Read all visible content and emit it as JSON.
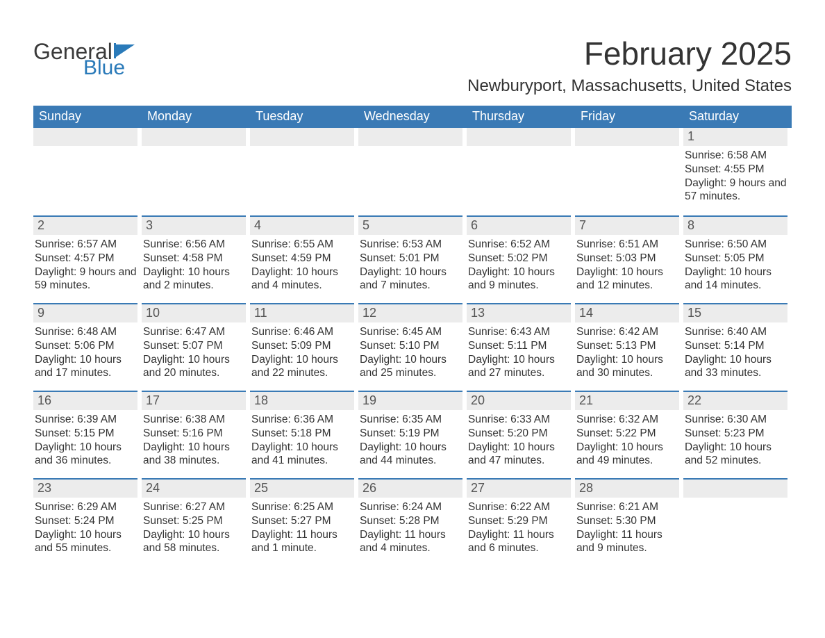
{
  "logo": {
    "text1": "General",
    "text2": "Blue",
    "flag_color": "#2a7ab9"
  },
  "title": {
    "month": "February 2025",
    "location": "Newburyport, Massachusetts, United States"
  },
  "colors": {
    "header_bg": "#3a7ab5",
    "header_text": "#ffffff",
    "daynum_bg": "#ececec",
    "border_accent": "#3a7ab5",
    "body_text": "#333333"
  },
  "labels": {
    "sunrise": "Sunrise:",
    "sunset": "Sunset:",
    "daylight": "Daylight:"
  },
  "day_headers": [
    "Sunday",
    "Monday",
    "Tuesday",
    "Wednesday",
    "Thursday",
    "Friday",
    "Saturday"
  ],
  "weeks": [
    [
      null,
      null,
      null,
      null,
      null,
      null,
      {
        "n": "1",
        "sunrise": "6:58 AM",
        "sunset": "4:55 PM",
        "daylight": "9 hours and 57 minutes."
      }
    ],
    [
      {
        "n": "2",
        "sunrise": "6:57 AM",
        "sunset": "4:57 PM",
        "daylight": "9 hours and 59 minutes."
      },
      {
        "n": "3",
        "sunrise": "6:56 AM",
        "sunset": "4:58 PM",
        "daylight": "10 hours and 2 minutes."
      },
      {
        "n": "4",
        "sunrise": "6:55 AM",
        "sunset": "4:59 PM",
        "daylight": "10 hours and 4 minutes."
      },
      {
        "n": "5",
        "sunrise": "6:53 AM",
        "sunset": "5:01 PM",
        "daylight": "10 hours and 7 minutes."
      },
      {
        "n": "6",
        "sunrise": "6:52 AM",
        "sunset": "5:02 PM",
        "daylight": "10 hours and 9 minutes."
      },
      {
        "n": "7",
        "sunrise": "6:51 AM",
        "sunset": "5:03 PM",
        "daylight": "10 hours and 12 minutes."
      },
      {
        "n": "8",
        "sunrise": "6:50 AM",
        "sunset": "5:05 PM",
        "daylight": "10 hours and 14 minutes."
      }
    ],
    [
      {
        "n": "9",
        "sunrise": "6:48 AM",
        "sunset": "5:06 PM",
        "daylight": "10 hours and 17 minutes."
      },
      {
        "n": "10",
        "sunrise": "6:47 AM",
        "sunset": "5:07 PM",
        "daylight": "10 hours and 20 minutes."
      },
      {
        "n": "11",
        "sunrise": "6:46 AM",
        "sunset": "5:09 PM",
        "daylight": "10 hours and 22 minutes."
      },
      {
        "n": "12",
        "sunrise": "6:45 AM",
        "sunset": "5:10 PM",
        "daylight": "10 hours and 25 minutes."
      },
      {
        "n": "13",
        "sunrise": "6:43 AM",
        "sunset": "5:11 PM",
        "daylight": "10 hours and 27 minutes."
      },
      {
        "n": "14",
        "sunrise": "6:42 AM",
        "sunset": "5:13 PM",
        "daylight": "10 hours and 30 minutes."
      },
      {
        "n": "15",
        "sunrise": "6:40 AM",
        "sunset": "5:14 PM",
        "daylight": "10 hours and 33 minutes."
      }
    ],
    [
      {
        "n": "16",
        "sunrise": "6:39 AM",
        "sunset": "5:15 PM",
        "daylight": "10 hours and 36 minutes."
      },
      {
        "n": "17",
        "sunrise": "6:38 AM",
        "sunset": "5:16 PM",
        "daylight": "10 hours and 38 minutes."
      },
      {
        "n": "18",
        "sunrise": "6:36 AM",
        "sunset": "5:18 PM",
        "daylight": "10 hours and 41 minutes."
      },
      {
        "n": "19",
        "sunrise": "6:35 AM",
        "sunset": "5:19 PM",
        "daylight": "10 hours and 44 minutes."
      },
      {
        "n": "20",
        "sunrise": "6:33 AM",
        "sunset": "5:20 PM",
        "daylight": "10 hours and 47 minutes."
      },
      {
        "n": "21",
        "sunrise": "6:32 AM",
        "sunset": "5:22 PM",
        "daylight": "10 hours and 49 minutes."
      },
      {
        "n": "22",
        "sunrise": "6:30 AM",
        "sunset": "5:23 PM",
        "daylight": "10 hours and 52 minutes."
      }
    ],
    [
      {
        "n": "23",
        "sunrise": "6:29 AM",
        "sunset": "5:24 PM",
        "daylight": "10 hours and 55 minutes."
      },
      {
        "n": "24",
        "sunrise": "6:27 AM",
        "sunset": "5:25 PM",
        "daylight": "10 hours and 58 minutes."
      },
      {
        "n": "25",
        "sunrise": "6:25 AM",
        "sunset": "5:27 PM",
        "daylight": "11 hours and 1 minute."
      },
      {
        "n": "26",
        "sunrise": "6:24 AM",
        "sunset": "5:28 PM",
        "daylight": "11 hours and 4 minutes."
      },
      {
        "n": "27",
        "sunrise": "6:22 AM",
        "sunset": "5:29 PM",
        "daylight": "11 hours and 6 minutes."
      },
      {
        "n": "28",
        "sunrise": "6:21 AM",
        "sunset": "5:30 PM",
        "daylight": "11 hours and 9 minutes."
      },
      null
    ]
  ]
}
